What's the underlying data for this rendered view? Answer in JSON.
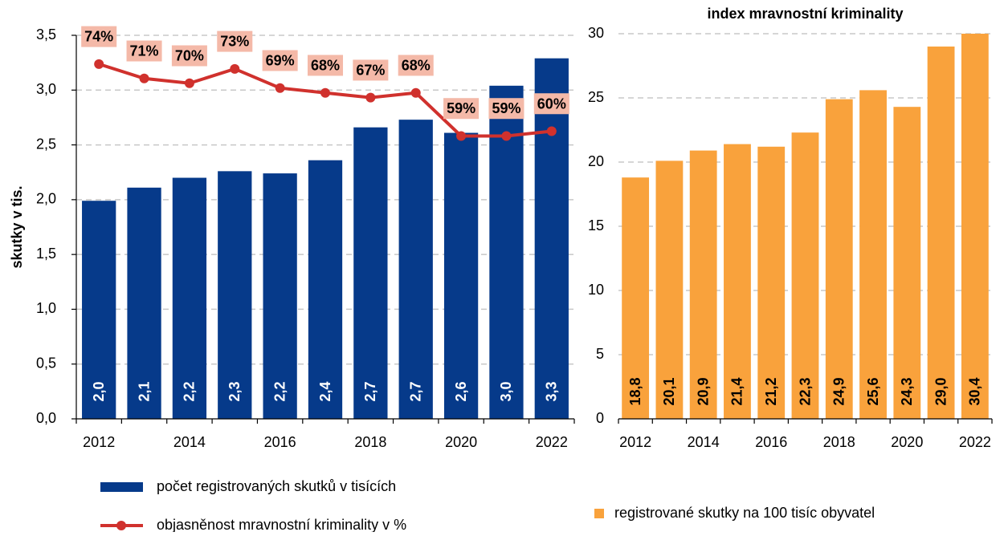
{
  "chart_data": [
    {
      "type": "combo",
      "y_label": "skutky v tis.",
      "categories": [
        "2012",
        null,
        "2014",
        null,
        "2016",
        null,
        "2018",
        null,
        "2020",
        null,
        "2022"
      ],
      "ylim": [
        0,
        3.5
      ],
      "yticks": [
        {
          "value": 0,
          "label": "0,0"
        },
        {
          "value": 0.5,
          "label": "0,5"
        },
        {
          "value": 1,
          "label": "1,0"
        },
        {
          "value": 1.5,
          "label": "1,5"
        },
        {
          "value": 2,
          "label": "2,0"
        },
        {
          "value": 2.5,
          "label": "2,5"
        },
        {
          "value": 3,
          "label": "3,0"
        },
        {
          "value": 3.5,
          "label": "3,5"
        }
      ],
      "y2lim": [
        0,
        80
      ],
      "grid": true,
      "series": [
        {
          "name": "počet registrovaných skutků v tisících",
          "type": "bar",
          "color": "#063a8a",
          "values": [
            1.99,
            2.11,
            2.2,
            2.26,
            2.24,
            2.36,
            2.66,
            2.73,
            2.61,
            3.04,
            3.29
          ],
          "value_labels": [
            "2,0",
            "2,1",
            "2,2",
            "2,3",
            "2,2",
            "2,4",
            "2,7",
            "2,7",
            "2,6",
            "3,0",
            "3,3"
          ]
        },
        {
          "name": "objasněnost mravnostní kriminality v %",
          "type": "line",
          "axis": "y2",
          "color": "#d0312d",
          "values": [
            74,
            71,
            70,
            73,
            69,
            68,
            67,
            68,
            59,
            59,
            60
          ],
          "value_labels": [
            "74%",
            "71%",
            "70%",
            "73%",
            "69%",
            "68%",
            "67%",
            "68%",
            "59%",
            "59%",
            "60%"
          ]
        }
      ]
    },
    {
      "type": "bar",
      "title": "index mravnostní kriminality",
      "categories": [
        "2012",
        null,
        "2014",
        null,
        "2016",
        null,
        "2018",
        null,
        "2020",
        null,
        "2022"
      ],
      "ylim": [
        0,
        30
      ],
      "yticks": [
        0,
        5,
        10,
        15,
        20,
        25,
        30
      ],
      "grid": true,
      "series": [
        {
          "name": "registrované skutky na 100 tisíc obyvatel",
          "type": "bar",
          "color": "#f9a23c",
          "values": [
            18.8,
            20.1,
            20.9,
            21.4,
            21.2,
            22.3,
            24.9,
            25.6,
            24.3,
            29.0,
            30.4
          ],
          "value_labels": [
            "18,8",
            "20,1",
            "20,9",
            "21,4",
            "21,2",
            "22,3",
            "24,9",
            "25,6",
            "24,3",
            "29,0",
            "30,4"
          ]
        }
      ]
    }
  ]
}
